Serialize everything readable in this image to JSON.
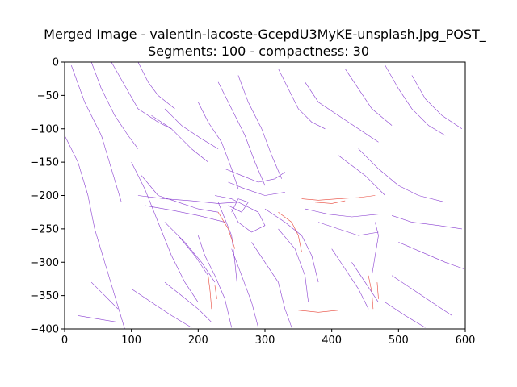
{
  "figure": {
    "title_line1": "Merged Image - valentin-lacoste-GcepdU3MyKE-unsplash.jpg_POST_",
    "title_line2": "Segments: 100 - compactness: 30"
  },
  "chart_data": {
    "type": "line",
    "title": "Merged Image - valentin-lacoste-GcepdU3MyKE-unsplash.jpg_POST_\nSegments: 100 - compactness: 30",
    "xlabel": "",
    "ylabel": "",
    "xlim": [
      0,
      600
    ],
    "ylim": [
      -400,
      0
    ],
    "x_ticks": [
      0,
      100,
      200,
      300,
      400,
      500,
      600
    ],
    "y_ticks": [
      0,
      -50,
      -100,
      -150,
      -200,
      -250,
      -300,
      -350,
      -400
    ],
    "grid": false,
    "colors": {
      "primary": "#8a3fd1",
      "secondary": "#e8473a",
      "frame": "#000000"
    },
    "series": [
      {
        "color": "#8a3fd1",
        "values_description_free": true,
        "lines": [
          [
            [
              0,
              -110
            ],
            [
              20,
              -150
            ],
            [
              35,
              -200
            ],
            [
              45,
              -250
            ],
            [
              60,
              -300
            ],
            [
              75,
              -350
            ],
            [
              90,
              -400
            ]
          ],
          [
            [
              10,
              -5
            ],
            [
              30,
              -60
            ],
            [
              55,
              -110
            ],
            [
              70,
              -160
            ],
            [
              85,
              -210
            ]
          ],
          [
            [
              40,
              0
            ],
            [
              55,
              -40
            ],
            [
              75,
              -80
            ],
            [
              95,
              -110
            ],
            [
              110,
              -130
            ]
          ],
          [
            [
              70,
              0
            ],
            [
              90,
              -35
            ],
            [
              110,
              -70
            ],
            [
              140,
              -90
            ],
            [
              160,
              -100
            ]
          ],
          [
            [
              110,
              0
            ],
            [
              125,
              -30
            ],
            [
              140,
              -50
            ],
            [
              165,
              -70
            ]
          ],
          [
            [
              130,
              -80
            ],
            [
              160,
              -100
            ],
            [
              190,
              -130
            ],
            [
              215,
              -150
            ]
          ],
          [
            [
              150,
              -70
            ],
            [
              175,
              -95
            ],
            [
              205,
              -115
            ],
            [
              230,
              -130
            ]
          ],
          [
            [
              100,
              -150
            ],
            [
              120,
              -190
            ],
            [
              140,
              -240
            ],
            [
              160,
              -290
            ],
            [
              180,
              -330
            ],
            [
              200,
              -360
            ]
          ],
          [
            [
              115,
              -170
            ],
            [
              140,
              -200
            ],
            [
              170,
              -210
            ],
            [
              200,
              -220
            ],
            [
              230,
              -225
            ]
          ],
          [
            [
              110,
              -200
            ],
            [
              150,
              -205
            ],
            [
              190,
              -208
            ],
            [
              230,
              -212
            ],
            [
              260,
              -210
            ]
          ],
          [
            [
              120,
              -215
            ],
            [
              160,
              -222
            ],
            [
              200,
              -230
            ],
            [
              240,
              -240
            ]
          ],
          [
            [
              150,
              -240
            ],
            [
              180,
              -270
            ],
            [
              205,
              -300
            ],
            [
              225,
              -330
            ]
          ],
          [
            [
              170,
              -260
            ],
            [
              195,
              -290
            ],
            [
              215,
              -320
            ]
          ],
          [
            [
              200,
              -60
            ],
            [
              215,
              -90
            ],
            [
              235,
              -120
            ],
            [
              250,
              -160
            ],
            [
              260,
              -190
            ]
          ],
          [
            [
              230,
              -30
            ],
            [
              250,
              -70
            ],
            [
              270,
              -110
            ],
            [
              285,
              -150
            ],
            [
              300,
              -185
            ]
          ],
          [
            [
              260,
              -20
            ],
            [
              275,
              -60
            ],
            [
              295,
              -100
            ],
            [
              310,
              -140
            ],
            [
              325,
              -175
            ]
          ],
          [
            [
              320,
              -10
            ],
            [
              335,
              -40
            ],
            [
              350,
              -70
            ],
            [
              370,
              -90
            ],
            [
              390,
              -100
            ]
          ],
          [
            [
              360,
              -30
            ],
            [
              380,
              -60
            ],
            [
              410,
              -80
            ],
            [
              440,
              -100
            ],
            [
              470,
              -120
            ]
          ],
          [
            [
              420,
              -10
            ],
            [
              440,
              -40
            ],
            [
              460,
              -70
            ],
            [
              490,
              -95
            ]
          ],
          [
            [
              480,
              -5
            ],
            [
              500,
              -40
            ],
            [
              520,
              -70
            ],
            [
              545,
              -95
            ],
            [
              570,
              -110
            ]
          ],
          [
            [
              520,
              -20
            ],
            [
              540,
              -55
            ],
            [
              565,
              -80
            ],
            [
              595,
              -100
            ]
          ],
          [
            [
              440,
              -130
            ],
            [
              470,
              -160
            ],
            [
              500,
              -185
            ],
            [
              530,
              -200
            ],
            [
              570,
              -210
            ]
          ],
          [
            [
              410,
              -140
            ],
            [
              450,
              -170
            ],
            [
              480,
              -200
            ]
          ],
          [
            [
              490,
              -230
            ],
            [
              520,
              -240
            ],
            [
              560,
              -245
            ],
            [
              595,
              -250
            ]
          ],
          [
            [
              500,
              -270
            ],
            [
              535,
              -285
            ],
            [
              570,
              -300
            ],
            [
              598,
              -310
            ]
          ],
          [
            [
              490,
              -320
            ],
            [
              520,
              -340
            ],
            [
              550,
              -360
            ],
            [
              580,
              -380
            ]
          ],
          [
            [
              480,
              -360
            ],
            [
              510,
              -380
            ],
            [
              540,
              -398
            ]
          ],
          [
            [
              300,
              -220
            ],
            [
              330,
              -240
            ],
            [
              355,
              -260
            ],
            [
              370,
              -290
            ],
            [
              380,
              -330
            ]
          ],
          [
            [
              320,
              -250
            ],
            [
              345,
              -280
            ],
            [
              360,
              -320
            ],
            [
              365,
              -360
            ]
          ],
          [
            [
              280,
              -270
            ],
            [
              300,
              -300
            ],
            [
              320,
              -330
            ],
            [
              330,
              -370
            ],
            [
              340,
              -398
            ]
          ],
          [
            [
              250,
              -280
            ],
            [
              265,
              -320
            ],
            [
              280,
              -360
            ],
            [
              290,
              -398
            ]
          ],
          [
            [
              200,
              -260
            ],
            [
              210,
              -290
            ],
            [
              225,
              -320
            ],
            [
              240,
              -355
            ],
            [
              250,
              -398
            ]
          ],
          [
            [
              380,
              -240
            ],
            [
              410,
              -250
            ],
            [
              440,
              -260
            ],
            [
              470,
              -255
            ]
          ],
          [
            [
              360,
              -220
            ],
            [
              395,
              -228
            ],
            [
              430,
              -232
            ],
            [
              470,
              -228
            ]
          ],
          [
            [
              400,
              -280
            ],
            [
              420,
              -310
            ],
            [
              440,
              -340
            ],
            [
              455,
              -370
            ]
          ],
          [
            [
              430,
              -300
            ],
            [
              450,
              -330
            ],
            [
              470,
              -360
            ]
          ],
          [
            [
              150,
              -330
            ],
            [
              175,
              -350
            ],
            [
              200,
              -370
            ],
            [
              220,
              -390
            ]
          ],
          [
            [
              100,
              -340
            ],
            [
              130,
              -360
            ],
            [
              160,
              -380
            ],
            [
              190,
              -398
            ]
          ],
          [
            [
              20,
              -380
            ],
            [
              50,
              -385
            ],
            [
              80,
              -390
            ]
          ],
          [
            [
              40,
              -330
            ],
            [
              60,
              -350
            ],
            [
              80,
              -370
            ]
          ],
          [
            [
              240,
              -160
            ],
            [
              265,
              -170
            ],
            [
              290,
              -180
            ],
            [
              315,
              -175
            ],
            [
              330,
              -165
            ]
          ],
          [
            [
              245,
              -180
            ],
            [
              270,
              -190
            ],
            [
              300,
              -200
            ],
            [
              330,
              -195
            ]
          ],
          [
            [
              225,
              -200
            ],
            [
              250,
              -205
            ],
            [
              270,
              -215
            ],
            [
              290,
              -225
            ],
            [
              300,
              -245
            ],
            [
              280,
              -255
            ],
            [
              260,
              -240
            ],
            [
              250,
              -220
            ]
          ],
          [
            [
              245,
              -215
            ],
            [
              265,
              -225
            ],
            [
              275,
              -210
            ],
            [
              260,
              -205
            ],
            [
              250,
              -225
            ]
          ],
          [
            [
              230,
              -210
            ],
            [
              240,
              -235
            ],
            [
              250,
              -260
            ],
            [
              255,
              -300
            ],
            [
              258,
              -330
            ]
          ],
          [
            [
              465,
              -240
            ],
            [
              470,
              -260
            ],
            [
              465,
              -290
            ],
            [
              460,
              -320
            ]
          ]
        ]
      },
      {
        "color": "#e8473a",
        "lines": [
          [
            [
              355,
              -205
            ],
            [
              380,
              -207
            ],
            [
              410,
              -205
            ],
            [
              440,
              -203
            ],
            [
              465,
              -200
            ]
          ],
          [
            [
              375,
              -210
            ],
            [
              400,
              -212
            ],
            [
              420,
              -208
            ]
          ],
          [
            [
              320,
              -225
            ],
            [
              340,
              -240
            ],
            [
              350,
              -260
            ],
            [
              355,
              -285
            ]
          ],
          [
            [
              215,
              -320
            ],
            [
              218,
              -345
            ],
            [
              220,
              -370
            ]
          ],
          [
            [
              225,
              -335
            ],
            [
              228,
              -355
            ]
          ],
          [
            [
              455,
              -320
            ],
            [
              460,
              -345
            ],
            [
              462,
              -370
            ]
          ],
          [
            [
              468,
              -330
            ],
            [
              470,
              -355
            ]
          ],
          [
            [
              350,
              -372
            ],
            [
              380,
              -375
            ],
            [
              410,
              -372
            ]
          ],
          [
            [
              230,
              -225
            ],
            [
              245,
              -250
            ],
            [
              255,
              -280
            ]
          ]
        ]
      }
    ]
  }
}
